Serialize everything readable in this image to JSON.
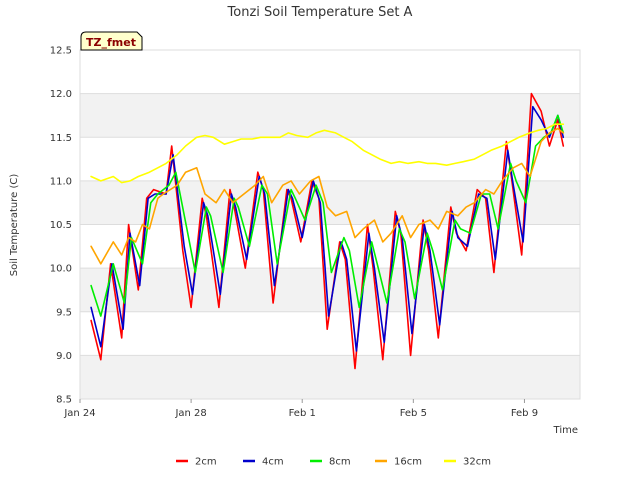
{
  "chart_data": {
    "type": "line",
    "title": "Tonzi Soil Temperature Set A",
    "xlabel": "Time",
    "ylabel": "Soil Temperature (C)",
    "badge": "TZ_fmet",
    "ylim": [
      8.5,
      12.5
    ],
    "xlim_days": [
      0,
      18
    ],
    "yticks": [
      "8.5",
      "9.0",
      "9.5",
      "10.0",
      "10.5",
      "11.0",
      "11.5",
      "12.0",
      "12.5"
    ],
    "ytick_values": [
      8.5,
      9.0,
      9.5,
      10.0,
      10.5,
      11.0,
      11.5,
      12.0,
      12.5
    ],
    "xticks": [
      "Jan 24",
      "Jan 28",
      "Feb 1",
      "Feb 5",
      "Feb 9"
    ],
    "xtick_days": [
      0,
      4,
      8,
      12,
      16
    ],
    "grid": true,
    "legend_position": "bottom",
    "series": [
      {
        "name": "2cm",
        "color": "#ff0000",
        "x": [
          0.4,
          0.75,
          1.1,
          1.5,
          1.75,
          2.1,
          2.4,
          2.65,
          3.1,
          3.3,
          3.7,
          4.0,
          4.4,
          4.55,
          5.0,
          5.4,
          5.55,
          5.95,
          6.4,
          6.6,
          6.95,
          7.45,
          7.6,
          7.95,
          8.35,
          8.6,
          8.9,
          9.35,
          9.55,
          9.9,
          10.35,
          10.55,
          10.9,
          11.35,
          11.55,
          11.9,
          12.35,
          12.55,
          12.9,
          13.35,
          13.55,
          13.9,
          14.3,
          14.6,
          14.9,
          15.35,
          15.55,
          15.9,
          16.25,
          16.6,
          16.9,
          17.2,
          17.4
        ],
        "y": [
          9.4,
          8.95,
          10.05,
          9.2,
          10.5,
          9.75,
          10.8,
          10.9,
          10.85,
          11.4,
          10.2,
          9.55,
          10.8,
          10.6,
          9.55,
          10.9,
          10.7,
          10.0,
          11.1,
          10.9,
          9.6,
          10.9,
          10.8,
          10.3,
          11.0,
          10.8,
          9.3,
          10.3,
          10.1,
          8.85,
          10.5,
          10.0,
          8.95,
          10.65,
          10.4,
          9.0,
          10.55,
          10.2,
          9.2,
          10.7,
          10.4,
          10.2,
          10.9,
          10.8,
          9.95,
          11.45,
          11.0,
          10.15,
          12.0,
          11.8,
          11.4,
          11.7,
          11.4
        ]
      },
      {
        "name": "4cm",
        "color": "#0000cc",
        "x": [
          0.4,
          0.75,
          1.15,
          1.55,
          1.8,
          2.15,
          2.45,
          2.7,
          3.1,
          3.35,
          3.75,
          4.05,
          4.45,
          4.6,
          5.05,
          5.45,
          5.6,
          6.0,
          6.45,
          6.65,
          7.0,
          7.5,
          7.65,
          8.0,
          8.4,
          8.65,
          8.95,
          9.4,
          9.6,
          9.95,
          10.4,
          10.6,
          10.95,
          11.4,
          11.6,
          11.95,
          12.4,
          12.6,
          12.95,
          13.4,
          13.6,
          13.95,
          14.35,
          14.65,
          14.95,
          15.4,
          15.6,
          15.95,
          16.3,
          16.6,
          16.9,
          17.2,
          17.4
        ],
        "y": [
          9.55,
          9.1,
          10.05,
          9.3,
          10.4,
          9.8,
          10.8,
          10.85,
          10.85,
          11.3,
          10.25,
          9.7,
          10.75,
          10.6,
          9.7,
          10.85,
          10.7,
          10.1,
          11.05,
          10.85,
          9.8,
          10.9,
          10.8,
          10.35,
          11.0,
          10.75,
          9.45,
          10.3,
          10.1,
          9.05,
          10.4,
          10.0,
          9.15,
          10.6,
          10.35,
          9.25,
          10.5,
          10.2,
          9.35,
          10.65,
          10.35,
          10.25,
          10.85,
          10.8,
          10.1,
          11.35,
          10.95,
          10.3,
          11.85,
          11.7,
          11.5,
          11.75,
          11.5
        ]
      },
      {
        "name": "8cm",
        "color": "#00ee00",
        "x": [
          0.4,
          0.75,
          1.2,
          1.6,
          1.85,
          2.25,
          2.55,
          2.8,
          3.2,
          3.45,
          3.85,
          4.15,
          4.55,
          4.7,
          5.15,
          5.55,
          5.7,
          6.1,
          6.55,
          6.75,
          7.1,
          7.6,
          7.75,
          8.1,
          8.5,
          8.75,
          9.05,
          9.5,
          9.7,
          10.05,
          10.5,
          10.7,
          11.05,
          11.5,
          11.7,
          12.05,
          12.5,
          12.7,
          13.05,
          13.5,
          13.7,
          14.05,
          14.45,
          14.75,
          15.05,
          15.5,
          15.7,
          16.05,
          16.4,
          16.7,
          16.95,
          17.2,
          17.4
        ],
        "y": [
          9.8,
          9.45,
          10.05,
          9.6,
          10.35,
          10.05,
          10.75,
          10.85,
          10.95,
          11.1,
          10.45,
          9.95,
          10.7,
          10.6,
          9.95,
          10.8,
          10.7,
          10.25,
          10.95,
          10.85,
          10.05,
          10.9,
          10.8,
          10.55,
          10.95,
          10.75,
          9.95,
          10.35,
          10.2,
          9.55,
          10.3,
          10.05,
          9.6,
          10.45,
          10.3,
          9.65,
          10.4,
          10.2,
          9.75,
          10.55,
          10.45,
          10.4,
          10.85,
          10.85,
          10.45,
          11.2,
          11.0,
          10.75,
          11.4,
          11.5,
          11.55,
          11.75,
          11.55
        ]
      },
      {
        "name": "16cm",
        "color": "#ffa500",
        "x": [
          0.4,
          0.75,
          1.2,
          1.5,
          1.75,
          2.0,
          2.25,
          2.5,
          2.8,
          3.0,
          3.5,
          3.8,
          4.2,
          4.5,
          4.9,
          5.2,
          5.5,
          5.9,
          6.3,
          6.6,
          6.9,
          7.3,
          7.6,
          7.9,
          8.3,
          8.6,
          8.9,
          9.2,
          9.6,
          9.9,
          10.2,
          10.6,
          10.9,
          11.2,
          11.6,
          11.9,
          12.2,
          12.6,
          12.9,
          13.2,
          13.6,
          13.9,
          14.2,
          14.6,
          14.9,
          15.2,
          15.6,
          15.9,
          16.2,
          16.6,
          16.9,
          17.2,
          17.4
        ],
        "y": [
          10.25,
          10.05,
          10.3,
          10.15,
          10.35,
          10.3,
          10.5,
          10.45,
          10.8,
          10.85,
          10.95,
          11.1,
          11.15,
          10.85,
          10.75,
          10.9,
          10.75,
          10.85,
          10.95,
          11.05,
          10.75,
          10.95,
          11.0,
          10.85,
          11.0,
          11.05,
          10.7,
          10.6,
          10.65,
          10.35,
          10.45,
          10.55,
          10.3,
          10.4,
          10.6,
          10.35,
          10.5,
          10.55,
          10.45,
          10.65,
          10.6,
          10.7,
          10.75,
          10.9,
          10.85,
          11.0,
          11.15,
          11.2,
          11.05,
          11.45,
          11.55,
          11.6,
          11.55
        ]
      },
      {
        "name": "32cm",
        "color": "#ffff00",
        "x": [
          0.4,
          0.75,
          1.2,
          1.5,
          1.8,
          2.1,
          2.5,
          2.8,
          3.1,
          3.5,
          3.8,
          4.2,
          4.5,
          4.8,
          5.2,
          5.5,
          5.8,
          6.2,
          6.5,
          6.8,
          7.2,
          7.5,
          7.8,
          8.2,
          8.5,
          8.8,
          9.2,
          9.5,
          9.8,
          10.2,
          10.5,
          10.8,
          11.2,
          11.5,
          11.8,
          12.2,
          12.5,
          12.8,
          13.2,
          13.5,
          13.8,
          14.2,
          14.5,
          14.8,
          15.2,
          15.5,
          15.8,
          16.2,
          16.5,
          16.8,
          17.1,
          17.4
        ],
        "y": [
          11.05,
          11.0,
          11.05,
          10.98,
          11.0,
          11.05,
          11.1,
          11.15,
          11.2,
          11.3,
          11.4,
          11.5,
          11.52,
          11.5,
          11.42,
          11.45,
          11.48,
          11.48,
          11.5,
          11.5,
          11.5,
          11.55,
          11.52,
          11.5,
          11.55,
          11.58,
          11.55,
          11.5,
          11.45,
          11.35,
          11.3,
          11.25,
          11.2,
          11.22,
          11.2,
          11.22,
          11.2,
          11.2,
          11.18,
          11.2,
          11.22,
          11.25,
          11.3,
          11.35,
          11.4,
          11.45,
          11.5,
          11.55,
          11.58,
          11.6,
          11.65,
          11.65
        ]
      }
    ]
  }
}
